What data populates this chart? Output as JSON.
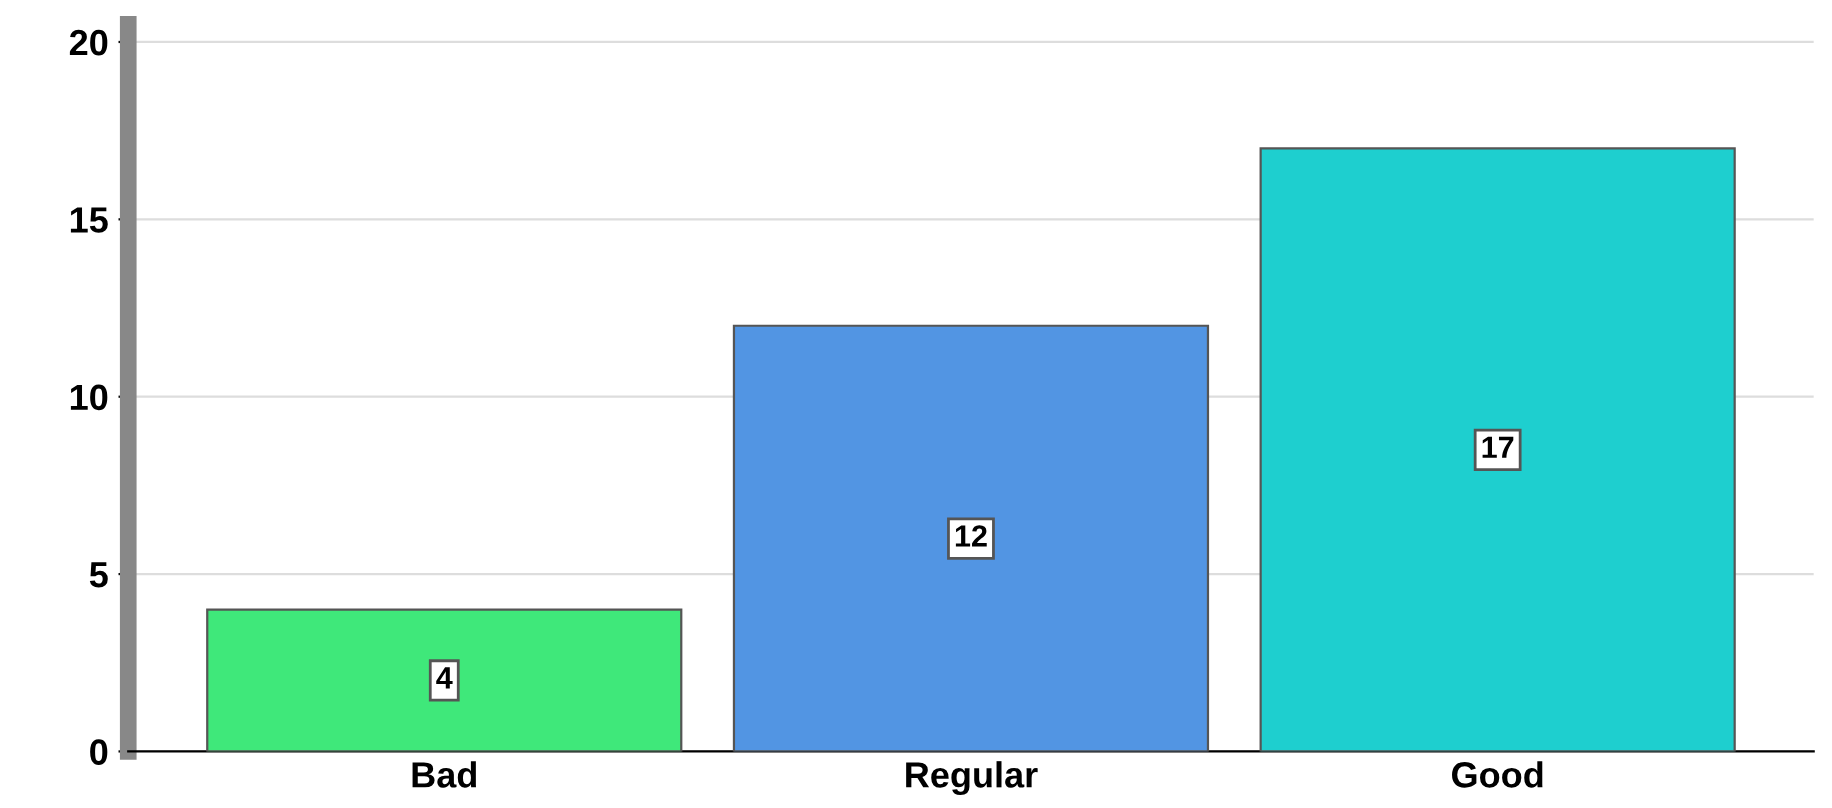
{
  "chart_data": {
    "type": "bar",
    "categories": [
      "Bad",
      "Regular",
      "Good"
    ],
    "values": [
      4,
      12,
      17
    ],
    "colors": [
      "#3fe87a",
      "#5295e3",
      "#1ecfcf"
    ],
    "ylim": [
      0,
      20.5
    ],
    "yticks": [
      0,
      5,
      10,
      15,
      20
    ],
    "grid": "y",
    "data_labels": true
  }
}
